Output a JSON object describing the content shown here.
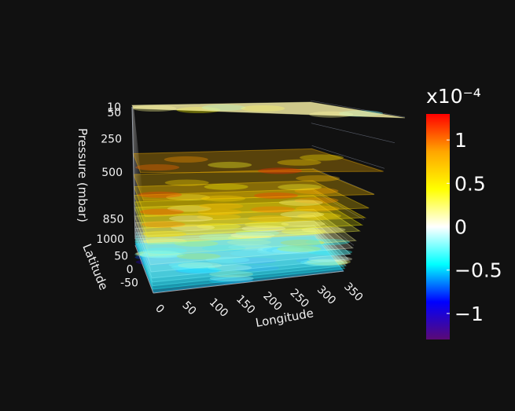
{
  "chart_data": {
    "type": "volume",
    "title": "",
    "axes": {
      "x": {
        "label": "Longitude",
        "ticks": [
          0,
          50,
          100,
          150,
          200,
          250,
          300,
          350
        ],
        "range": [
          0,
          360
        ]
      },
      "y": {
        "label": "Latitude",
        "ticks": [
          -50,
          0,
          50
        ],
        "range": [
          -90,
          90
        ]
      },
      "z": {
        "label": "Pressure (mbar)",
        "ticks": [
          10,
          50,
          250,
          500,
          850,
          1000
        ],
        "range": [
          10,
          1000
        ],
        "reversed": true
      }
    },
    "layers": [
      {
        "pressure": 10,
        "mean_value": 0.1,
        "opacity": 0.75
      },
      {
        "pressure": 50,
        "mean_value": 0.6,
        "opacity": 0.55
      },
      {
        "pressure": 100,
        "mean_value": 0.55,
        "opacity": 0.55
      },
      {
        "pressure": 150,
        "mean_value": 0.5,
        "opacity": 0.5
      },
      {
        "pressure": 200,
        "mean_value": 0.45,
        "opacity": 0.5
      },
      {
        "pressure": 250,
        "mean_value": 0.35,
        "opacity": 0.45
      },
      {
        "pressure": 300,
        "mean_value": 0.25,
        "opacity": 0.45
      },
      {
        "pressure": 400,
        "mean_value": 0.15,
        "opacity": 0.4
      },
      {
        "pressure": 500,
        "mean_value": 0.05,
        "opacity": 0.4
      },
      {
        "pressure": 600,
        "mean_value": -0.05,
        "opacity": 0.4
      },
      {
        "pressure": 700,
        "mean_value": -0.1,
        "opacity": 0.4
      },
      {
        "pressure": 775,
        "mean_value": -0.15,
        "opacity": 0.4
      },
      {
        "pressure": 850,
        "mean_value": -0.2,
        "opacity": 0.45
      },
      {
        "pressure": 925,
        "mean_value": -0.3,
        "opacity": 0.45
      },
      {
        "pressure": 1000,
        "mean_value": -0.45,
        "opacity": 0.55
      }
    ],
    "colorbar": {
      "title": "x10⁻⁴",
      "range": [
        -1.3,
        1.3
      ],
      "tick_values": [
        1,
        0.5,
        0,
        -0.5,
        -1
      ],
      "tick_labels": [
        "1",
        "0.5",
        "0",
        "−0.5",
        "−1"
      ],
      "colorscale": [
        "#5b0a75",
        "#0000ff",
        "#00ffff",
        "#ffffff",
        "#ffff00",
        "#ffa500",
        "#ff0000"
      ]
    }
  },
  "colors": {
    "background": "#111111",
    "text": "#f2f2f2"
  }
}
